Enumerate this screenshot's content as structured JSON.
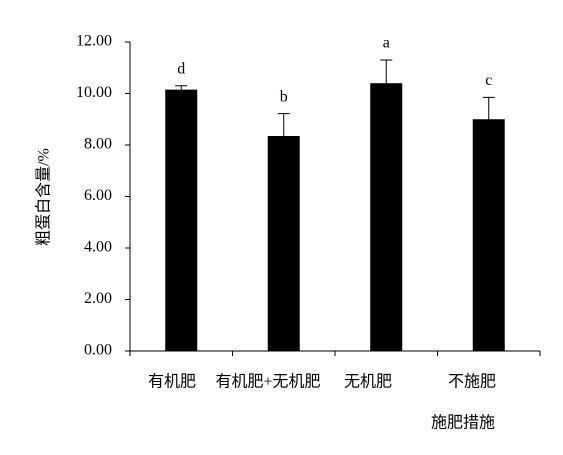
{
  "chart_data": {
    "type": "bar",
    "y_label": "粗蛋白含量/%",
    "x_label": "施肥措施",
    "categories": [
      "有机肥",
      "有机肥+无机肥",
      "无机肥",
      "不施肥"
    ],
    "values": [
      10.15,
      8.35,
      10.4,
      9.0
    ],
    "errors": [
      0.15,
      0.87,
      0.9,
      0.85
    ],
    "annotations": [
      "d",
      "b",
      "a",
      "c"
    ],
    "color": "#000000",
    "ylim": [
      0,
      12
    ],
    "yticks": [
      {
        "value": 0,
        "label": "0.00"
      },
      {
        "value": 2,
        "label": "2.00"
      },
      {
        "value": 4,
        "label": "4.00"
      },
      {
        "value": 6,
        "label": "6.00"
      },
      {
        "value": 8,
        "label": "8.00"
      },
      {
        "value": 10,
        "label": "10.00"
      },
      {
        "value": 12,
        "label": "12.00"
      }
    ],
    "grid": false
  }
}
